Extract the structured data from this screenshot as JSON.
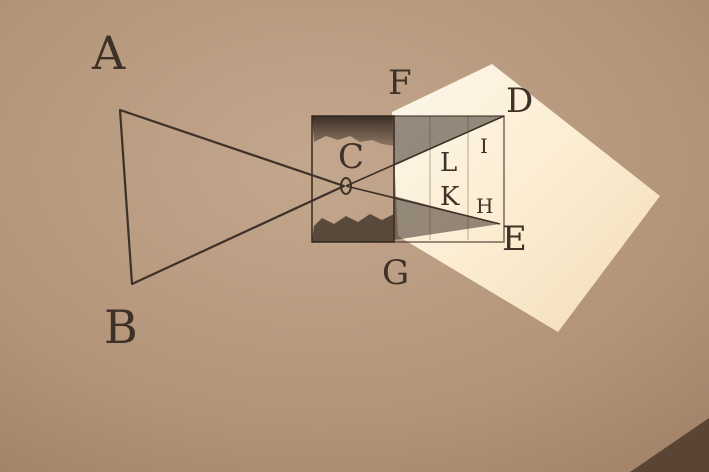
{
  "image": {
    "kind": "photograph",
    "colors": {
      "wall": "#b79a80",
      "wall_dark_corner": "#5a4434",
      "light_patch": "#fff4dc",
      "ink": "#3e3128"
    },
    "labels": {
      "a": "A",
      "b": "B",
      "c": "C",
      "d": "D",
      "e": "E",
      "f": "F",
      "g": "G",
      "h": "H",
      "i": "I",
      "k": "K",
      "l": "L"
    }
  }
}
